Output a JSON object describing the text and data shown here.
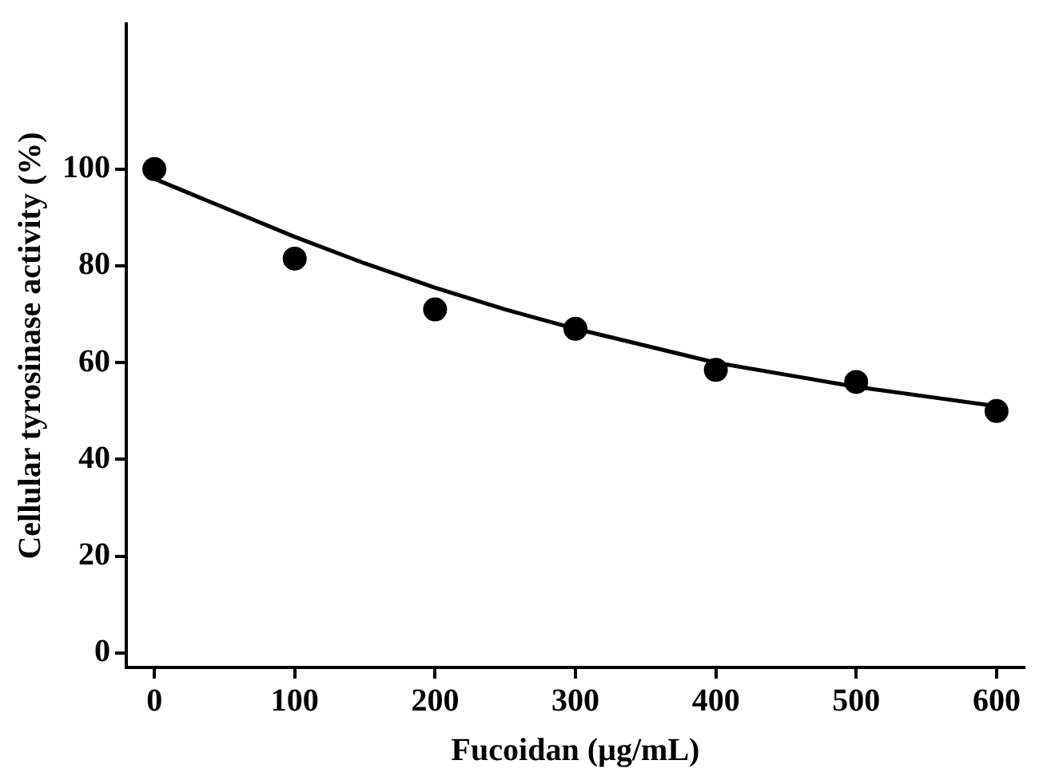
{
  "chart_data": {
    "type": "scatter",
    "xlabel": "Fucoidan (µg/mL)",
    "ylabel": "Cellular tyrosinase activity (%)",
    "xlim": [
      -20,
      620
    ],
    "xticks": [
      0,
      100,
      200,
      300,
      400,
      500,
      600
    ],
    "ylim": [
      -3,
      130
    ],
    "yticks": [
      0,
      20,
      40,
      60,
      80,
      100
    ],
    "grid": false,
    "legend": false,
    "marker": "circle",
    "series": [
      {
        "type": "scatter",
        "color": "#000000",
        "x": [
          0,
          100,
          200,
          300,
          400,
          500,
          600
        ],
        "values": [
          100,
          81.5,
          71,
          67,
          58.5,
          56,
          50
        ]
      },
      {
        "type": "line",
        "color": "#000000",
        "marker": "none",
        "x": [
          0,
          50,
          100,
          150,
          200,
          250,
          300,
          350,
          400,
          450,
          500,
          550,
          600
        ],
        "values": [
          98,
          92,
          86,
          80.5,
          75.5,
          71,
          67,
          63.5,
          60,
          57.5,
          55,
          53,
          51
        ]
      }
    ]
  }
}
